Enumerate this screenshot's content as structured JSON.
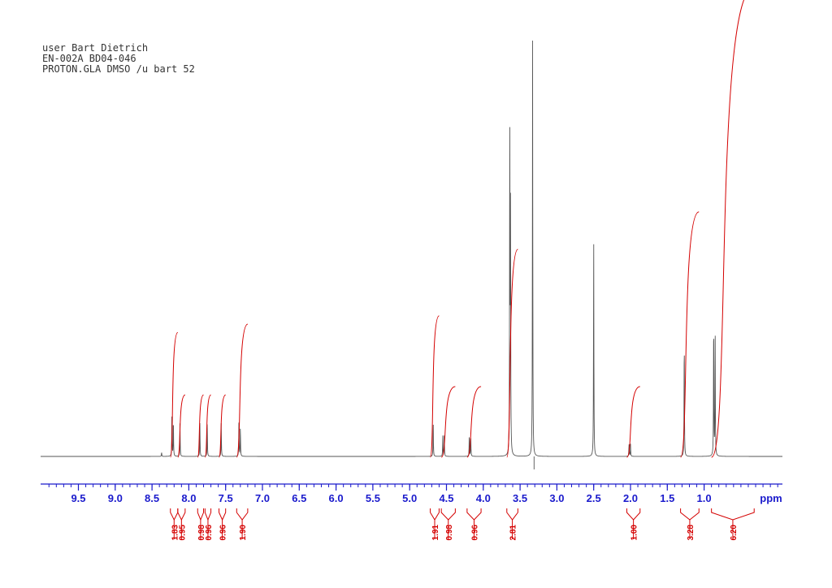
{
  "header": {
    "line1": "user Bart Dietrich",
    "line2": "EN-002A BD04-046",
    "line3": "PROTON.GLA DMSO /u bart 52"
  },
  "colors": {
    "spectrum": "#555555",
    "integral": "#d40000",
    "axis": "#1a1acc"
  },
  "chart_data": {
    "type": "line",
    "title": "",
    "xlabel": "ppm",
    "ylabel": "",
    "x_reversed": true,
    "xlim": [
      10.0,
      -0.5
    ],
    "ylim": [
      0,
      1
    ],
    "grid": false,
    "ticks": [
      "9.5",
      "9.0",
      "8.5",
      "8.0",
      "7.5",
      "7.0",
      "6.5",
      "6.0",
      "5.5",
      "5.0",
      "4.5",
      "4.0",
      "3.5",
      "3.0",
      "2.5",
      "2.0",
      "1.5",
      "1.0"
    ],
    "peaks": [
      {
        "ppm": 8.37,
        "height": 0.01
      },
      {
        "ppm": 8.23,
        "height": 0.1
      },
      {
        "ppm": 8.21,
        "height": 0.09
      },
      {
        "ppm": 8.12,
        "height": 0.08
      },
      {
        "ppm": 7.85,
        "height": 0.08
      },
      {
        "ppm": 7.75,
        "height": 0.08
      },
      {
        "ppm": 7.56,
        "height": 0.08
      },
      {
        "ppm": 7.32,
        "height": 0.08
      },
      {
        "ppm": 7.3,
        "height": 0.07
      },
      {
        "ppm": 4.68,
        "height": 0.08
      },
      {
        "ppm": 4.55,
        "height": 0.05
      },
      {
        "ppm": 4.53,
        "height": 0.05
      },
      {
        "ppm": 4.19,
        "height": 0.05
      },
      {
        "ppm": 4.17,
        "height": 0.05
      },
      {
        "ppm": 3.64,
        "height": 0.82
      },
      {
        "ppm": 3.63,
        "height": 0.61
      },
      {
        "ppm": 3.33,
        "height": 1.0
      },
      {
        "ppm": 2.5,
        "height": 0.53
      },
      {
        "ppm": 2.02,
        "height": 0.03
      },
      {
        "ppm": 2.0,
        "height": 0.03
      },
      {
        "ppm": 1.27,
        "height": 0.29
      },
      {
        "ppm": 0.87,
        "height": 0.34
      },
      {
        "ppm": 0.85,
        "height": 0.3
      }
    ],
    "integrals": [
      {
        "label": "1.83",
        "from": 8.25,
        "to": 8.15,
        "rise": 0.3
      },
      {
        "label": "0.95",
        "from": 8.15,
        "to": 8.05,
        "rise": 0.15
      },
      {
        "label": "0.98",
        "from": 7.88,
        "to": 7.8,
        "rise": 0.15
      },
      {
        "label": "0.96",
        "from": 7.78,
        "to": 7.7,
        "rise": 0.15
      },
      {
        "label": "0.96",
        "from": 7.59,
        "to": 7.5,
        "rise": 0.15
      },
      {
        "label": "1.90",
        "from": 7.35,
        "to": 7.2,
        "rise": 0.32
      },
      {
        "label": "1.91",
        "from": 4.72,
        "to": 4.6,
        "rise": 0.34
      },
      {
        "label": "0.98",
        "from": 4.57,
        "to": 4.38,
        "rise": 0.17
      },
      {
        "label": "0.96",
        "from": 4.22,
        "to": 4.03,
        "rise": 0.17
      },
      {
        "label": "2.81",
        "from": 3.68,
        "to": 3.53,
        "rise": 0.5
      },
      {
        "label": "1.00",
        "from": 2.05,
        "to": 1.87,
        "rise": 0.17
      },
      {
        "label": "3.28",
        "from": 1.32,
        "to": 1.07,
        "rise": 0.59
      },
      {
        "label": "6.20",
        "from": 0.9,
        "to": 0.32,
        "rise": 1.13
      }
    ]
  }
}
